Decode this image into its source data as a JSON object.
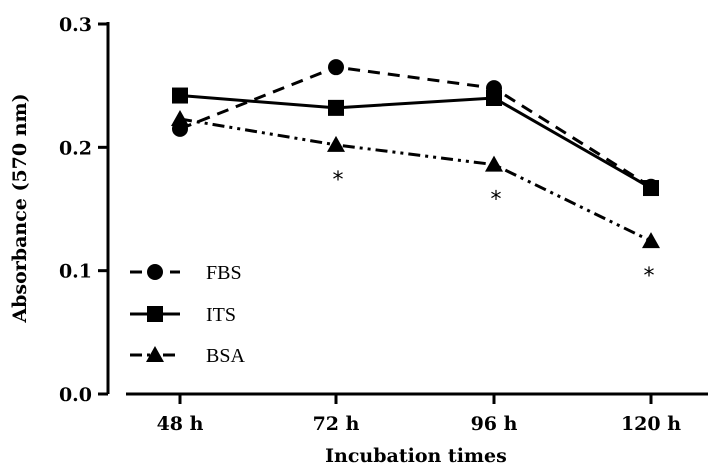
{
  "chart_data": {
    "type": "line",
    "categories": [
      "48 h",
      "72 h",
      "96 h",
      "120 h"
    ],
    "xlabel": "Incubation times",
    "ylabel": "Absorbance (570 nm)",
    "ylim": [
      0.0,
      0.3
    ],
    "yticks": [
      "0.0",
      "0.1",
      "0.2",
      "0.3"
    ],
    "grid": false,
    "legend_position": "bottom-left",
    "series": [
      {
        "name": "FBS",
        "values": [
          0.215,
          0.265,
          0.248,
          0.168
        ],
        "marker": "circle",
        "line_style": "dashed",
        "color": "#000000"
      },
      {
        "name": "ITS",
        "values": [
          0.242,
          0.232,
          0.24,
          0.167
        ],
        "marker": "square",
        "line_style": "solid",
        "color": "#000000"
      },
      {
        "name": "BSA",
        "values": [
          0.223,
          0.202,
          0.186,
          0.124
        ],
        "marker": "triangle",
        "line_style": "dash-dot-dot",
        "color": "#000000"
      }
    ],
    "annotations": [
      {
        "category": "72 h",
        "value": 0.202,
        "text": "*"
      },
      {
        "category": "96 h",
        "value": 0.186,
        "text": "*"
      },
      {
        "category": "120 h",
        "value": 0.124,
        "text": "*"
      }
    ]
  }
}
